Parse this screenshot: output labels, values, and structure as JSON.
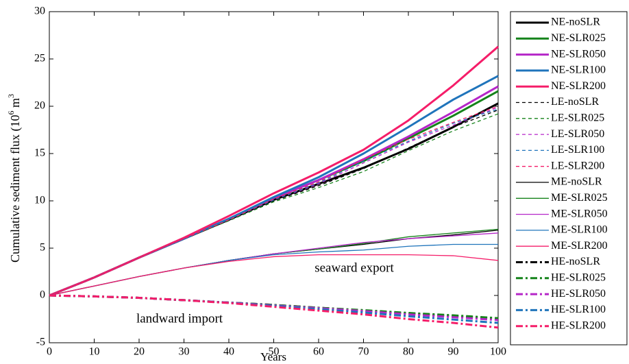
{
  "chart_data": {
    "type": "line",
    "xlabel": "Years",
    "ylabel": {
      "text": "Cumulative sediment flux (10",
      "exp1": "6",
      "unit": " m",
      "exp2": "3"
    },
    "annotations": [
      "seaward export",
      "landward import"
    ],
    "x": [
      0,
      10,
      20,
      30,
      40,
      50,
      60,
      70,
      80,
      90,
      100
    ],
    "xlim": [
      0,
      100
    ],
    "xticks": [
      0,
      10,
      20,
      30,
      40,
      50,
      60,
      70,
      80,
      90,
      100
    ],
    "ylim": [
      -5,
      30
    ],
    "yticks": [
      -5,
      0,
      5,
      10,
      15,
      20,
      25,
      30
    ],
    "grid": false,
    "legend": "outside-right",
    "series": [
      {
        "name": "NE-noSLR",
        "color": "#000000",
        "style": "thick",
        "values": [
          0,
          1.9,
          4.0,
          6.0,
          8.0,
          10.1,
          11.8,
          13.5,
          15.5,
          17.8,
          20.3
        ]
      },
      {
        "name": "NE-SLR025",
        "color": "#15831a",
        "style": "thick",
        "values": [
          0,
          1.9,
          4.0,
          6.0,
          8.1,
          10.3,
          12.2,
          14.2,
          16.6,
          19.0,
          21.6
        ]
      },
      {
        "name": "NE-SLR050",
        "color": "#b526c8",
        "style": "thick",
        "values": [
          0,
          1.9,
          4.0,
          6.0,
          8.1,
          10.3,
          12.2,
          14.4,
          16.8,
          19.4,
          22.1
        ]
      },
      {
        "name": "NE-SLR100",
        "color": "#1f74bb",
        "style": "thick",
        "values": [
          0,
          1.9,
          4.0,
          6.0,
          8.1,
          10.4,
          12.5,
          15.0,
          17.8,
          20.7,
          23.2
        ]
      },
      {
        "name": "NE-SLR200",
        "color": "#f51d69",
        "style": "thick",
        "values": [
          0,
          1.9,
          4.0,
          6.1,
          8.4,
          10.8,
          13.0,
          15.4,
          18.5,
          22.2,
          26.3
        ]
      },
      {
        "name": "LE-noSLR",
        "color": "#000000",
        "style": "dashed",
        "values": [
          0,
          1.9,
          4.0,
          6.0,
          7.9,
          10.0,
          11.6,
          13.4,
          15.6,
          17.8,
          19.6
        ]
      },
      {
        "name": "LE-SLR025",
        "color": "#15831a",
        "style": "dashed",
        "values": [
          0,
          1.9,
          4.0,
          6.0,
          7.9,
          9.9,
          11.4,
          13.1,
          15.3,
          17.4,
          19.2
        ]
      },
      {
        "name": "LE-SLR050",
        "color": "#b526c8",
        "style": "dashed",
        "values": [
          0,
          1.9,
          4.0,
          6.0,
          8.0,
          10.1,
          11.8,
          14.0,
          16.2,
          18.0,
          19.9
        ]
      },
      {
        "name": "LE-SLR100",
        "color": "#1f74bb",
        "style": "dashed",
        "values": [
          0,
          1.9,
          4.0,
          6.0,
          8.0,
          10.1,
          11.9,
          14.2,
          16.3,
          18.2,
          19.7
        ]
      },
      {
        "name": "LE-SLR200",
        "color": "#f51d69",
        "style": "dashed",
        "values": [
          0,
          1.9,
          4.0,
          6.0,
          8.0,
          10.2,
          12.0,
          14.4,
          16.5,
          18.3,
          20.0
        ]
      },
      {
        "name": "ME-noSLR",
        "color": "#000000",
        "style": "thin",
        "values": [
          0,
          1.0,
          2.0,
          2.9,
          3.7,
          4.4,
          4.9,
          5.4,
          6.0,
          6.4,
          6.9
        ]
      },
      {
        "name": "ME-SLR025",
        "color": "#15831a",
        "style": "thin",
        "values": [
          0,
          1.0,
          2.0,
          2.9,
          3.7,
          4.4,
          4.9,
          5.5,
          6.2,
          6.6,
          7.0
        ]
      },
      {
        "name": "ME-SLR050",
        "color": "#b526c8",
        "style": "thin",
        "values": [
          0,
          1.0,
          2.0,
          2.9,
          3.7,
          4.4,
          5.0,
          5.6,
          6.0,
          6.3,
          6.6
        ]
      },
      {
        "name": "ME-SLR100",
        "color": "#1f74bb",
        "style": "thin",
        "values": [
          0,
          1.0,
          2.0,
          2.9,
          3.7,
          4.3,
          4.6,
          4.8,
          5.2,
          5.4,
          5.4
        ]
      },
      {
        "name": "ME-SLR200",
        "color": "#f51d69",
        "style": "thin",
        "values": [
          0,
          1.0,
          2.0,
          2.9,
          3.6,
          4.1,
          4.3,
          4.3,
          4.3,
          4.2,
          3.7
        ]
      },
      {
        "name": "HE-noSLR",
        "color": "#000000",
        "style": "dash-dot",
        "values": [
          0,
          -0.1,
          -0.25,
          -0.5,
          -0.75,
          -1.0,
          -1.3,
          -1.6,
          -1.9,
          -2.2,
          -2.5
        ]
      },
      {
        "name": "HE-SLR025",
        "color": "#15831a",
        "style": "dash-dot",
        "values": [
          0,
          -0.1,
          -0.25,
          -0.5,
          -0.75,
          -1.0,
          -1.3,
          -1.55,
          -1.85,
          -2.1,
          -2.4
        ]
      },
      {
        "name": "HE-SLR050",
        "color": "#b526c8",
        "style": "dash-dot",
        "values": [
          0,
          -0.1,
          -0.25,
          -0.5,
          -0.75,
          -1.05,
          -1.35,
          -1.65,
          -2.0,
          -2.3,
          -2.6
        ]
      },
      {
        "name": "HE-SLR100",
        "color": "#1f74bb",
        "style": "dash-dot",
        "values": [
          0,
          -0.1,
          -0.25,
          -0.5,
          -0.78,
          -1.1,
          -1.45,
          -1.8,
          -2.2,
          -2.55,
          -2.9
        ]
      },
      {
        "name": "HE-SLR200",
        "color": "#f51d69",
        "style": "dash-dot",
        "values": [
          0,
          -0.1,
          -0.25,
          -0.5,
          -0.8,
          -1.2,
          -1.6,
          -2.0,
          -2.5,
          -2.9,
          -3.4
        ]
      }
    ]
  }
}
